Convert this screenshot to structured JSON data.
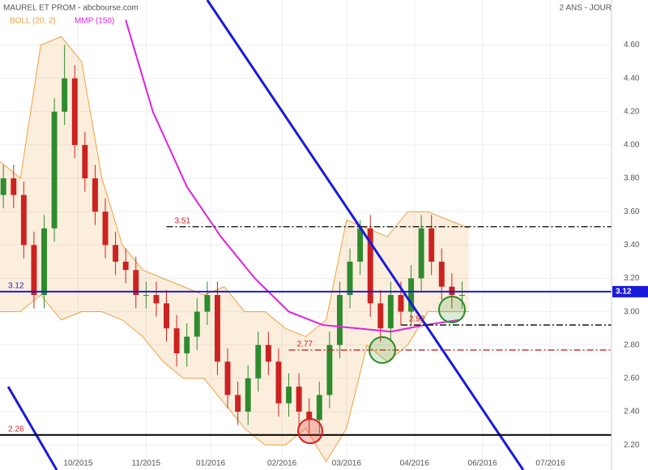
{
  "chart_data": {
    "type": "candlestick",
    "title": "MAUREL ET PROM - abcbourse.com",
    "subtitle": "2 ANS - JOUR",
    "up_color": "#2e8b2e",
    "down_color": "#cc2222",
    "candles": {
      "x": [
        1,
        4,
        7,
        10,
        13,
        16,
        19,
        22,
        25,
        28,
        31,
        34,
        37,
        40,
        43,
        46,
        49,
        52,
        55,
        58,
        61,
        64,
        67,
        70,
        73,
        76,
        79,
        82,
        85,
        88,
        91,
        94,
        97,
        100,
        103,
        106,
        109,
        112,
        115,
        118,
        121,
        124,
        127,
        130,
        133,
        136
      ],
      "open": [
        3.7,
        3.8,
        3.7,
        3.4,
        3.1,
        3.5,
        4.2,
        4.4,
        4.0,
        3.8,
        3.6,
        3.4,
        3.3,
        3.25,
        3.1,
        3.1,
        3.05,
        2.9,
        2.75,
        2.85,
        3.0,
        3.1,
        2.7,
        2.5,
        2.4,
        2.6,
        2.8,
        2.7,
        2.45,
        2.55,
        2.4,
        2.35,
        2.5,
        2.8,
        3.1,
        3.3,
        3.5,
        3.05,
        2.9,
        3.1,
        3.0,
        3.2,
        3.5,
        3.3,
        3.15,
        3.1
      ],
      "high": [
        3.88,
        3.88,
        3.78,
        3.48,
        3.58,
        4.28,
        4.6,
        4.48,
        4.08,
        3.88,
        3.68,
        3.48,
        3.38,
        3.33,
        3.18,
        3.18,
        3.13,
        2.98,
        2.93,
        3.08,
        3.18,
        3.18,
        2.78,
        2.58,
        2.68,
        2.88,
        2.88,
        2.78,
        2.63,
        2.63,
        2.48,
        2.58,
        2.88,
        3.18,
        3.38,
        3.55,
        3.58,
        3.13,
        3.18,
        3.18,
        3.28,
        3.58,
        3.58,
        3.38,
        3.23,
        3.18
      ],
      "low": [
        3.62,
        3.62,
        3.32,
        3.02,
        3.02,
        3.42,
        4.12,
        3.92,
        3.72,
        3.52,
        3.32,
        3.22,
        3.17,
        3.02,
        3.02,
        2.97,
        2.82,
        2.67,
        2.67,
        2.77,
        2.92,
        2.62,
        2.42,
        2.32,
        2.32,
        2.52,
        2.62,
        2.37,
        2.37,
        2.32,
        2.27,
        2.27,
        2.42,
        2.72,
        3.02,
        3.22,
        2.97,
        2.82,
        2.82,
        2.92,
        2.92,
        3.12,
        3.22,
        3.07,
        3.02,
        3.02
      ],
      "close": [
        3.8,
        3.7,
        3.4,
        3.1,
        3.5,
        4.2,
        4.4,
        4.0,
        3.8,
        3.6,
        3.4,
        3.3,
        3.25,
        3.1,
        3.1,
        3.05,
        2.9,
        2.75,
        2.85,
        3.0,
        3.1,
        2.7,
        2.5,
        2.4,
        2.6,
        2.8,
        2.7,
        2.45,
        2.55,
        2.4,
        2.35,
        2.5,
        2.8,
        3.1,
        3.3,
        3.5,
        3.05,
        2.9,
        3.1,
        3.0,
        3.2,
        3.5,
        3.3,
        3.15,
        3.1,
        3.1
      ]
    },
    "bollinger": {
      "name": "BOLL (20, 2)",
      "color": "#f0a040",
      "x": [
        0,
        6,
        12,
        18,
        24,
        30,
        36,
        42,
        48,
        54,
        60,
        66,
        72,
        78,
        84,
        90,
        96,
        102,
        108,
        114,
        120,
        126,
        132,
        138
      ],
      "upper": [
        3.9,
        3.8,
        4.6,
        4.65,
        4.5,
        3.8,
        3.4,
        3.25,
        3.2,
        3.15,
        3.1,
        3.15,
        3.0,
        3.0,
        2.9,
        2.85,
        2.95,
        3.55,
        3.5,
        3.45,
        3.6,
        3.6,
        3.55,
        3.5
      ],
      "lower": [
        3.0,
        3.0,
        3.1,
        2.95,
        3.0,
        3.0,
        2.95,
        2.85,
        2.7,
        2.6,
        2.6,
        2.45,
        2.3,
        2.2,
        2.2,
        2.3,
        2.1,
        2.3,
        2.8,
        2.7,
        2.8,
        3.0,
        3.0,
        3.0
      ]
    },
    "moving_average": {
      "name": "MMP (150)",
      "color": "#e020e0",
      "x": [
        37,
        45,
        55,
        65,
        75,
        85,
        95,
        105,
        115,
        125,
        135
      ],
      "values": [
        4.75,
        4.2,
        3.75,
        3.45,
        3.2,
        3.0,
        2.92,
        2.9,
        2.88,
        2.92,
        2.95
      ]
    },
    "trendlines": [
      {
        "color": "#1a1adc",
        "x": [
          61,
          154
        ],
        "y": [
          4.87,
          2.05
        ]
      },
      {
        "color": "#1a1adc",
        "x": [
          2.4,
          16.7
        ],
        "y": [
          2.55,
          2.05
        ]
      }
    ],
    "levels": [
      {
        "value": 3.51,
        "from": 49,
        "color": "#000000",
        "style": "dashdot"
      },
      {
        "value": 3.12,
        "from": 0,
        "color": "#1a1adc",
        "style": "solid"
      },
      {
        "value": 2.92,
        "from": 118,
        "color": "#000000",
        "style": "dashdot"
      },
      {
        "value": 2.77,
        "from": 85,
        "color": "#cc2222",
        "style": "dashdot"
      },
      {
        "value": 2.26,
        "from": 0,
        "color": "#000000",
        "style": "solid"
      }
    ],
    "xlim": [
      0,
      180
    ],
    "xticks": [
      {
        "value": 23,
        "label": "10/2015"
      },
      {
        "value": 43,
        "label": "11/2015"
      },
      {
        "value": 62,
        "label": "01/2016"
      },
      {
        "value": 83,
        "label": "02/2016"
      },
      {
        "value": 102,
        "label": "03/2016"
      },
      {
        "value": 122,
        "label": "04/2016"
      },
      {
        "value": 142,
        "label": "06/2016"
      },
      {
        "value": 162,
        "label": "07/2016"
      }
    ],
    "ylim": [
      2.05,
      4.87
    ],
    "yticks": [
      {
        "value": 2.2,
        "label": "2.20"
      },
      {
        "value": 2.4,
        "label": "2.40"
      },
      {
        "value": 2.6,
        "label": "2.60"
      },
      {
        "value": 2.8,
        "label": "2.80"
      },
      {
        "value": 3.0,
        "label": "3.00"
      },
      {
        "value": 3.2,
        "label": "3.20"
      },
      {
        "value": 3.4,
        "label": "3.40"
      },
      {
        "value": 3.6,
        "label": "3.60"
      },
      {
        "value": 3.8,
        "label": "3.80"
      },
      {
        "value": 4.0,
        "label": "4.00"
      },
      {
        "value": 4.2,
        "label": "4.20"
      },
      {
        "value": 4.4,
        "label": "4.40"
      },
      {
        "value": 4.6,
        "label": "4.60"
      }
    ],
    "last_level": 1
  }
}
